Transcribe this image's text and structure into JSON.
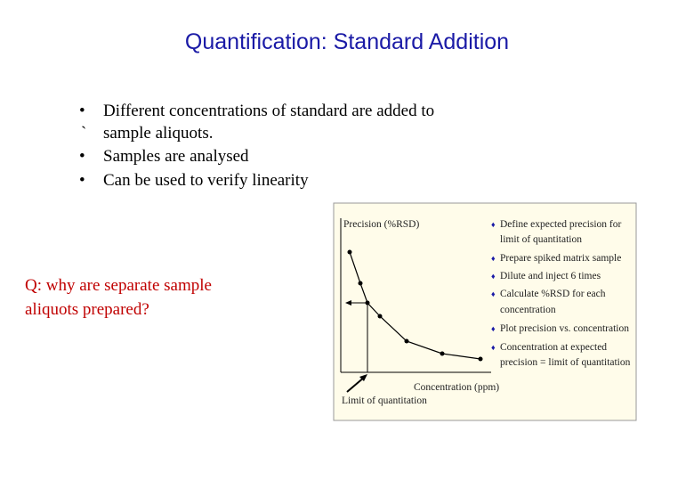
{
  "title": "Quantification: Standard Addition",
  "bullets": [
    {
      "marker": "•",
      "text": "Different concentrations of standard are added to"
    },
    {
      "marker": "`",
      "text": "sample aliquots."
    },
    {
      "marker": "•",
      "text": "Samples are analysed"
    },
    {
      "marker": "•",
      "text": "Can be used to verify linearity"
    }
  ],
  "question": {
    "lines": [
      "Q: why are separate sample",
      "aliquots prepared?"
    ]
  },
  "figure": {
    "y_label": "Precision (%RSD)",
    "x_label": "Concentration (ppm)",
    "arrow_label": "Limit of quantitation",
    "steps": [
      {
        "lines": [
          "Define expected precision for",
          "limit of quantitation"
        ]
      },
      {
        "lines": [
          "Prepare spiked matrix sample"
        ]
      },
      {
        "lines": [
          "Dilute and inject 6 times"
        ]
      },
      {
        "lines": [
          "Calculate %RSD for each",
          "concentration"
        ]
      },
      {
        "lines": [
          "Plot precision vs. concentration"
        ]
      },
      {
        "lines": [
          "Concentration at expected",
          "precision = limit of quantitation"
        ]
      }
    ]
  }
}
